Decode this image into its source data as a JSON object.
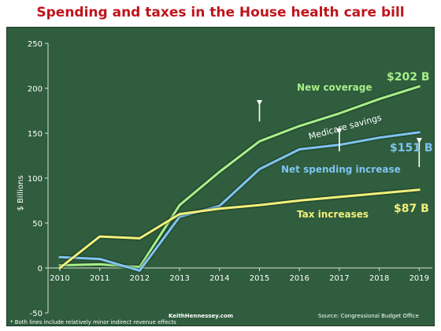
{
  "title": "Spending and taxes in the House health care bill",
  "colors": {
    "title": "#c0141c",
    "background": "#2f5d3d",
    "new_coverage": "#a7ef8a",
    "net_spending": "#7fc3f0",
    "tax_increases": "#f2f07a",
    "text": "#ffffff"
  },
  "chart_data": {
    "type": "line",
    "title": "Spending and taxes in the House health care bill",
    "ylabel": "$ Billions",
    "xlabel": "",
    "ylim": [
      -50,
      250
    ],
    "yticks": [
      "-50",
      "0",
      "50",
      "100",
      "150",
      "200",
      "250"
    ],
    "x": [
      "2010",
      "2011",
      "2012",
      "2013",
      "2014",
      "2015",
      "2016",
      "2017",
      "2018",
      "2019"
    ],
    "grid": false,
    "legend": "inline labels",
    "series": [
      {
        "name": "New coverage",
        "color": "#a7ef8a",
        "values": [
          3,
          4,
          1,
          70,
          107,
          141,
          158,
          172,
          188,
          202
        ]
      },
      {
        "name": "Net spending increase",
        "color": "#7fc3f0",
        "values": [
          12,
          10,
          -3,
          57,
          69,
          110,
          132,
          137,
          145,
          151
        ]
      },
      {
        "name": "Tax increases",
        "color": "#f2f07a",
        "values": [
          0,
          35,
          33,
          60,
          66,
          70,
          75,
          79,
          83,
          87
        ]
      }
    ],
    "end_labels": {
      "new_coverage": "$202 B",
      "net_spending": "$151 B",
      "tax_increases": "$87 B"
    },
    "annotation": "Medicare savings",
    "footnote": "* Both lines include relatively minor indirect revenue effects",
    "credit": "KeithHennessey.com",
    "source": "Source: Congressional Budget Office"
  }
}
